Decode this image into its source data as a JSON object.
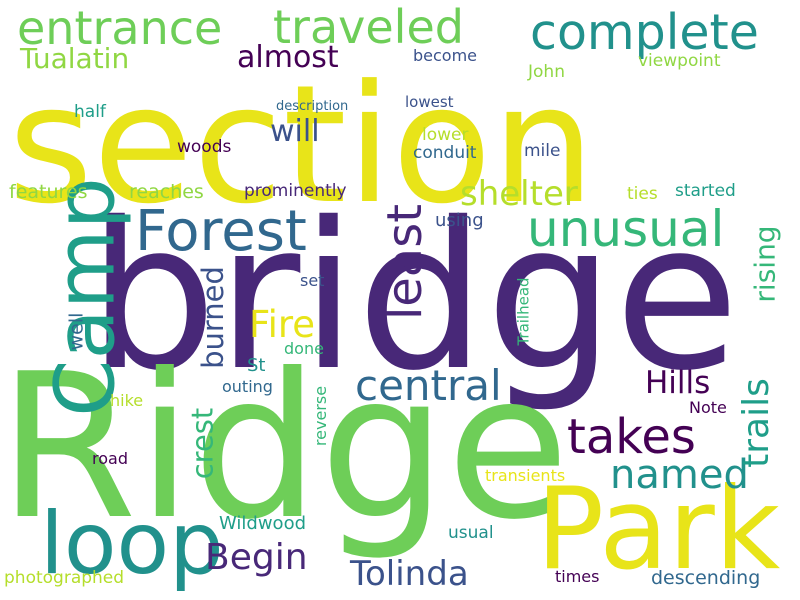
{
  "palette": {
    "yellow": "#e8e419",
    "purple": "#440154",
    "indigo": "#3b528b",
    "dark_teal": "#31688e",
    "teal": "#21918c",
    "green_teal": "#1f9e89",
    "green": "#35b779",
    "light_green": "#6ece58",
    "lime": "#b5de2b",
    "bright_green": "#90d743",
    "deep_purple": "#482878",
    "violet": "#3e4989"
  },
  "words": [
    {
      "text": "section",
      "color": "yellow"
    },
    {
      "text": "bridge",
      "color": "deep_purple"
    },
    {
      "text": "Ridge",
      "color": "light_green"
    },
    {
      "text": "Park",
      "color": "yellow"
    },
    {
      "text": "Camp",
      "color": "green_teal"
    },
    {
      "text": "loop",
      "color": "teal"
    },
    {
      "text": "Forest",
      "color": "dark_teal"
    },
    {
      "text": "entrance",
      "color": "light_green"
    },
    {
      "text": "traveled",
      "color": "light_green"
    },
    {
      "text": "complete",
      "color": "teal"
    },
    {
      "text": "unusual",
      "color": "green"
    },
    {
      "text": "least",
      "color": "deep_purple"
    },
    {
      "text": "takes",
      "color": "purple"
    },
    {
      "text": "central",
      "color": "dark_teal"
    },
    {
      "text": "named",
      "color": "teal"
    },
    {
      "text": "trails",
      "color": "green_teal"
    },
    {
      "text": "Tolinda",
      "color": "indigo"
    },
    {
      "text": "Begin",
      "color": "deep_purple"
    },
    {
      "text": "shelter",
      "color": "lime"
    },
    {
      "text": "rising",
      "color": "green"
    },
    {
      "text": "Fire",
      "color": "yellow"
    },
    {
      "text": "Hills",
      "color": "purple"
    },
    {
      "text": "burned",
      "color": "indigo"
    },
    {
      "text": "crest",
      "color": "green"
    },
    {
      "text": "will",
      "color": "indigo"
    },
    {
      "text": "almost",
      "color": "purple"
    },
    {
      "text": "Tualatin",
      "color": "bright_green"
    },
    {
      "text": "John",
      "color": "bright_green"
    },
    {
      "text": "viewpoint",
      "color": "bright_green"
    },
    {
      "text": "become",
      "color": "indigo"
    },
    {
      "text": "lowest",
      "color": "indigo"
    },
    {
      "text": "description",
      "color": "dark_teal"
    },
    {
      "text": "half",
      "color": "green_teal"
    },
    {
      "text": "lower",
      "color": "lime"
    },
    {
      "text": "conduit",
      "color": "dark_teal"
    },
    {
      "text": "mile",
      "color": "indigo"
    },
    {
      "text": "woods",
      "color": "purple"
    },
    {
      "text": "features",
      "color": "bright_green"
    },
    {
      "text": "reaches",
      "color": "bright_green"
    },
    {
      "text": "prominently",
      "color": "deep_purple"
    },
    {
      "text": "ties",
      "color": "lime"
    },
    {
      "text": "started",
      "color": "green_teal"
    },
    {
      "text": "using",
      "color": "indigo"
    },
    {
      "text": "set",
      "color": "indigo"
    },
    {
      "text": "St",
      "color": "teal"
    },
    {
      "text": "done",
      "color": "green"
    },
    {
      "text": "well",
      "color": "dark_teal"
    },
    {
      "text": "Trailhead",
      "color": "green"
    },
    {
      "text": "outing",
      "color": "dark_teal"
    },
    {
      "text": "hike",
      "color": "lime"
    },
    {
      "text": "reverse",
      "color": "green"
    },
    {
      "text": "Note",
      "color": "purple"
    },
    {
      "text": "road",
      "color": "purple"
    },
    {
      "text": "transients",
      "color": "yellow"
    },
    {
      "text": "Wildwood",
      "color": "green_teal"
    },
    {
      "text": "usual",
      "color": "teal"
    },
    {
      "text": "times",
      "color": "purple"
    },
    {
      "text": "descending",
      "color": "dark_teal"
    },
    {
      "text": "photographed",
      "color": "lime"
    }
  ]
}
